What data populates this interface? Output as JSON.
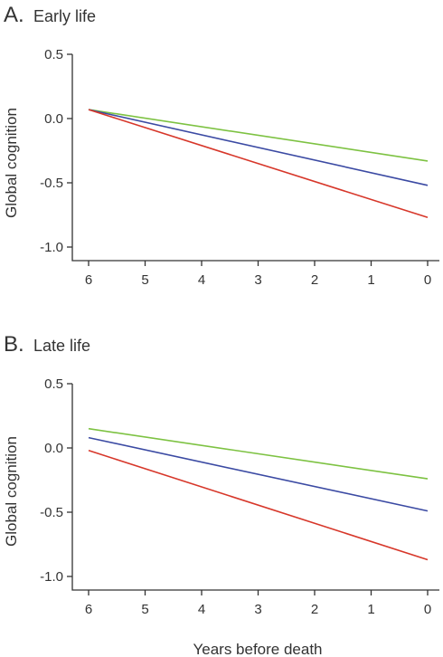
{
  "figure": {
    "xlabel": "Years before death"
  },
  "chart_data": [
    {
      "type": "line",
      "panel_letter": "A.",
      "title": "Early life",
      "ylabel": "Global cognition",
      "xlabel": "",
      "xlim": [
        6,
        0
      ],
      "ylim": [
        -1.0,
        0.5
      ],
      "x_ticks": [
        "6",
        "5",
        "4",
        "3",
        "2",
        "1",
        "0"
      ],
      "y_ticks": [
        "0.5",
        "0.0",
        "-0.5",
        "-1.0"
      ],
      "grid": false,
      "series": [
        {
          "color": "#7dc242",
          "x": [
            6,
            0
          ],
          "y": [
            0.07,
            -0.33
          ]
        },
        {
          "color": "#3b4aa3",
          "x": [
            6,
            0
          ],
          "y": [
            0.07,
            -0.52
          ]
        },
        {
          "color": "#d7372a",
          "x": [
            6,
            0
          ],
          "y": [
            0.07,
            -0.77
          ]
        }
      ]
    },
    {
      "type": "line",
      "panel_letter": "B.",
      "title": "Late life",
      "ylabel": "Global cognition",
      "xlabel": "",
      "xlim": [
        6,
        0
      ],
      "ylim": [
        -1.0,
        0.5
      ],
      "x_ticks": [
        "6",
        "5",
        "4",
        "3",
        "2",
        "1",
        "0"
      ],
      "y_ticks": [
        "0.5",
        "0.0",
        "-0.5",
        "-1.0"
      ],
      "grid": false,
      "series": [
        {
          "color": "#7dc242",
          "x": [
            6,
            0
          ],
          "y": [
            0.15,
            -0.24
          ]
        },
        {
          "color": "#3b4aa3",
          "x": [
            6,
            0
          ],
          "y": [
            0.08,
            -0.49
          ]
        },
        {
          "color": "#d7372a",
          "x": [
            6,
            0
          ],
          "y": [
            -0.02,
            -0.87
          ]
        }
      ]
    }
  ]
}
